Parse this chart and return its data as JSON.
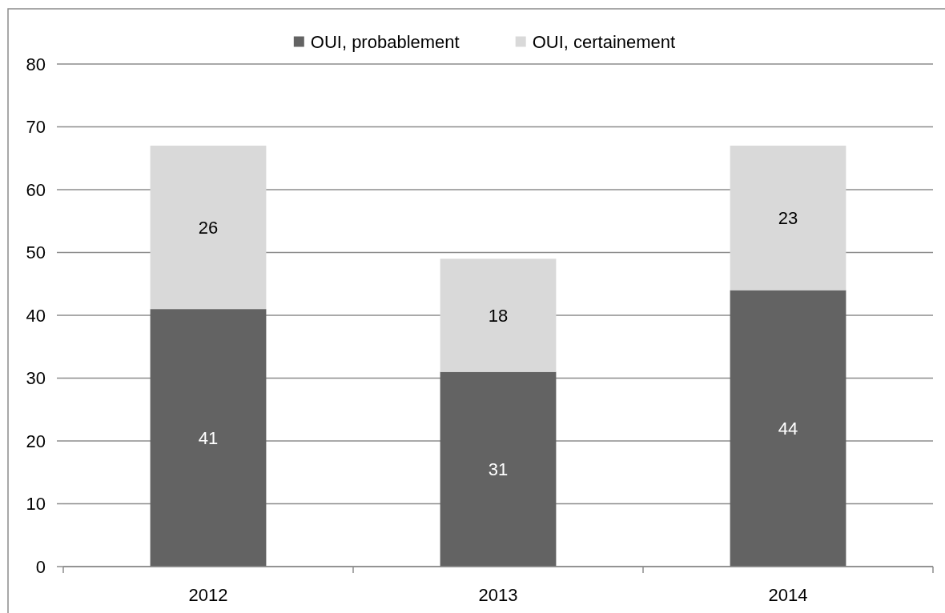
{
  "chart_data": {
    "type": "bar",
    "stacked": true,
    "categories": [
      "2012",
      "2013",
      "2014"
    ],
    "series": [
      {
        "name": "OUI, probablement",
        "color": "#636363",
        "values": [
          41,
          31,
          44
        ]
      },
      {
        "name": "OUI, certainement",
        "color": "#d9d9d9",
        "values": [
          26,
          18,
          23
        ]
      }
    ],
    "ylim": [
      0,
      80
    ],
    "yticks": [
      0,
      10,
      20,
      30,
      40,
      50,
      60,
      70,
      80
    ],
    "grid": "y",
    "legend": "top",
    "data_labels": true
  }
}
